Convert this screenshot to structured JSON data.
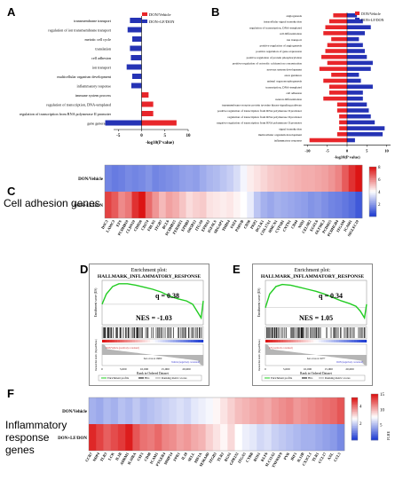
{
  "panels": {
    "a": "A",
    "b": "B",
    "c": "C",
    "d": "D",
    "e": "E",
    "f": "F"
  },
  "colors": {
    "red": "#e8262a",
    "blue": "#2533b5"
  },
  "chart_data": [
    {
      "id": "A",
      "type": "bar",
      "orientation": "horizontal",
      "legend": [
        "DON/Vehicle",
        "DON+LF/DON"
      ],
      "xlabel": "-log10(P value)",
      "xlim": [
        -6,
        10
      ],
      "xticks": [
        -5,
        0,
        5,
        10
      ],
      "categories": [
        "transmembrane transport",
        "regulation of ion transmembrane transport",
        "meiotic cell cycle",
        "translation",
        "cell adhesion",
        "ion transport",
        "multicellular organism development",
        "inflammatory response",
        "immune system process",
        "regulation of transcription, DNA-templated",
        "regulation of transcription from RNA polymerase II promoter",
        "gene generation"
      ],
      "values": [
        -2.5,
        -3.0,
        -2.0,
        -2.5,
        -2.3,
        -3.2,
        -2.0,
        -2.2,
        1.5,
        2.5,
        2.5,
        7.5
      ],
      "negative_extra": [
        0,
        0,
        0,
        0,
        0,
        0,
        0,
        0,
        0,
        0,
        0,
        -7.8
      ]
    },
    {
      "id": "B",
      "type": "bar",
      "orientation": "horizontal",
      "legend": [
        "DON/Vehicle",
        "DON+LF/DON"
      ],
      "xlabel": "-log10(P value)",
      "xlim": [
        -11,
        11
      ],
      "xticks": [
        -10,
        -5,
        0,
        5,
        10
      ],
      "categories": [
        "angiogenesis",
        "intracellular signal transduction",
        "regulation of transcription, DNA-templated",
        "cell differentiation",
        "ion transport",
        "positive regulation of angiogenesis",
        "positive regulation of gene expression",
        "positive regulation of protein phosphorylation",
        "positive regulation of cytosolic calcium ion concentration",
        "nervous system development",
        "axon guidance",
        "animal organ morphogenesis",
        "transcription, DNA-templated",
        "cell adhesion",
        "neuron differentiation",
        "transmembrane receptor protein tyrosine kinase signaling pathway",
        "positive regulation of transcription from RNA polymerase II promoter",
        "regulation of transcription from RNA polymerase II promoter",
        "negative regulation of transcription from RNA polymerase II promoter",
        "signal transduction",
        "multicellular organism development",
        "inflammatory response"
      ],
      "values_red": [
        -3.5,
        -4.5,
        -5.5,
        -6.0,
        -4.0,
        -5.0,
        -5.5,
        -6.5,
        -5.0,
        -7.0,
        -4.0,
        -6.0,
        -4.5,
        -4.5,
        -6.0,
        -2.5,
        -2.5,
        -2.0,
        -2.0,
        -2.0,
        -2.5,
        -9.5
      ],
      "values_blue": [
        2.5,
        4.0,
        6.0,
        4.5,
        3.0,
        4.0,
        4.5,
        5.0,
        6.5,
        6.0,
        3.0,
        3.5,
        6.5,
        4.0,
        4.0,
        5.0,
        5.5,
        6.0,
        7.0,
        9.5,
        9.0,
        2.0
      ]
    },
    {
      "id": "C",
      "type": "heatmap",
      "rows": [
        "DON/Vehicle",
        "DON+LF/DON"
      ],
      "row_title": "Cell adhesion genes",
      "columns": [
        "DSC3",
        "LAMC3",
        "EFS",
        "PCDHB10",
        "CLDN10",
        "CDH26",
        "CD274",
        "FBLN5",
        "ITGB7",
        "BCL6",
        "PCDHB15",
        "FERMT1",
        "EPHB3",
        "OR5B12",
        "ITGA9",
        "EPHA2",
        "IGFALS",
        "SRGAP1",
        "THBS4",
        "FAT4",
        "PARVB",
        "CD36",
        "PKP2",
        "DCLK1",
        "COL17A1",
        "HMCN1",
        "CYP1B1",
        "CNTN1",
        "CD44",
        "NID2",
        "CELSR2",
        "EGFL6",
        "OLFML3",
        "PCDH15",
        "PCDHGB4",
        "ITGAM",
        "ICAM1",
        "SIGLEC10"
      ],
      "colorbar": {
        "min": 0,
        "max": 8,
        "ticks": [
          2,
          4,
          6,
          8
        ]
      },
      "top_values": [
        1.5,
        1.3,
        1.4,
        1.6,
        1.5,
        1.6,
        1.8,
        1.5,
        1.6,
        1.7,
        1.8,
        2.0,
        2.1,
        2.0,
        2.3,
        2.5,
        2.6,
        2.8,
        3.0,
        3.3,
        3.8,
        4.3,
        4.5,
        4.7,
        4.9,
        5.0,
        5.1,
        5.2,
        5.3,
        5.4,
        5.4,
        5.5,
        5.6,
        5.8,
        6.1,
        6.8,
        7.5,
        8.0
      ],
      "bottom_values": [
        7.2,
        6.8,
        6.0,
        6.3,
        7.5,
        8.0,
        6.5,
        5.8,
        5.2,
        5.6,
        5.4,
        5.0,
        4.6,
        4.8,
        4.9,
        4.5,
        4.4,
        4.3,
        4.4,
        4.2,
        4.0,
        3.6,
        2.8,
        2.4,
        2.2,
        2.4,
        2.3,
        2.2,
        2.1,
        2.0,
        1.8,
        1.9,
        1.7,
        1.5,
        1.4,
        1.2,
        1.0,
        0.6
      ]
    },
    {
      "id": "D",
      "type": "line",
      "title_small": "Enrichment plot:",
      "title": "HALLMARK_INFLAMMATORY_RESPONSE",
      "q": "q = 0.38",
      "nes": "NES = -1.03",
      "ylabel": "Enrichment score (ES)",
      "xlabel": "Rank in Ordered Dataset",
      "lower_ylabel": "Ranked list metric (Signal2Noise)",
      "legend": [
        "Enrichment profile",
        "Hits",
        "Ranking metric scores"
      ],
      "left_tag": "DON/Vehicle (positively correlated)",
      "right_tag": "Vehicle (negatively correlated)",
      "zero_note": "Zero cross at 16000",
      "x": [
        0,
        1000,
        2500,
        4000,
        6000,
        8000,
        10000,
        12000,
        14000,
        16000,
        18000,
        20000,
        21500,
        22500,
        23500,
        24000
      ],
      "y": [
        0.0,
        0.15,
        0.26,
        0.3,
        0.3,
        0.28,
        0.25,
        0.22,
        0.18,
        0.12,
        0.08,
        0.05,
        0.0,
        -0.1,
        -0.2,
        0.05
      ],
      "xticks": [
        "0",
        "5,000",
        "10,000",
        "15,000",
        "20,000"
      ],
      "ylim": [
        -0.3,
        0.35
      ]
    },
    {
      "id": "E",
      "type": "line",
      "title_small": "Enrichment plot:",
      "title": "HALLMARK_INFLAMMATORY_RESPONSE",
      "q": "q = 0.34",
      "nes": "NES = 1.05",
      "ylabel": "Enrichment score (ES)",
      "xlabel": "Rank in Ordered Dataset",
      "lower_ylabel": "Ranked list metric (Signal2Noise)",
      "legend": [
        "Enrichment profile",
        "Hits",
        "Ranking metric scores"
      ],
      "left_tag": "LF (positively correlated)",
      "right_tag": "DON (negatively correlated)",
      "zero_note": "Zero cross at 10277",
      "x": [
        0,
        1000,
        2500,
        4000,
        6000,
        8000,
        10000,
        12000,
        14000,
        16000,
        18000,
        20000,
        21500,
        22500,
        23500,
        24000
      ],
      "y": [
        0.0,
        0.2,
        0.31,
        0.34,
        0.33,
        0.3,
        0.27,
        0.24,
        0.2,
        0.15,
        0.1,
        0.06,
        0.02,
        -0.05,
        -0.15,
        0.05
      ],
      "xticks": [
        "0",
        "5,000",
        "10,000",
        "15,000",
        "20,000"
      ],
      "ylim": [
        -0.25,
        0.4
      ]
    },
    {
      "id": "F",
      "type": "heatmap",
      "rows": [
        "DON/Vehicle",
        "DON+LF/DON"
      ],
      "row_title": "Inflammatory response genes",
      "columns": [
        "CCR7",
        "NDP4",
        "TLR3",
        "LCK",
        "IL1B",
        "ADRM1",
        "IL10RA",
        "CSF1",
        "CD48",
        "ICAM1",
        "PTGER4",
        "MMP14",
        "FPR1",
        "IL18",
        "SELL",
        "HIF1A",
        "SEMA4D",
        "ITGB3",
        "TLR2",
        "RGS1",
        "GPR132",
        "ITGA5",
        "CYBB",
        "ROS1",
        "KLF6",
        "SLC11A2",
        "TNFRSF9",
        "PVR",
        "IRF1",
        "IL12B",
        "CX3CL1",
        "TLR1",
        "CCL17",
        "AXL",
        "CCL5"
      ],
      "colorbar_a": {
        "min": 0,
        "max": 5,
        "ticks": [
          2,
          4
        ]
      },
      "colorbar_b": {
        "min": 0,
        "max": 15,
        "ticks": [
          5,
          10,
          15
        ]
      },
      "colorbar_b_label": "FLHE",
      "top_values": [
        1.5,
        1.4,
        1.6,
        1.5,
        1.7,
        1.6,
        1.8,
        1.6,
        1.7,
        1.8,
        1.9,
        2.0,
        2.1,
        2.0,
        2.2,
        2.3,
        2.4,
        2.6,
        2.8,
        3.0,
        3.2,
        3.3,
        3.4,
        3.5,
        3.4,
        3.6,
        3.7,
        3.8,
        3.6,
        3.7,
        3.8,
        3.9,
        4.0,
        4.1,
        4.3
      ],
      "bottom_values": [
        4.8,
        4.5,
        4.2,
        4.4,
        4.6,
        4.9,
        4.3,
        4.0,
        3.9,
        4.1,
        3.8,
        3.7,
        3.5,
        3.6,
        3.4,
        3.3,
        3.0,
        2.8,
        2.6,
        2.9,
        2.5,
        2.3,
        2.2,
        2.0,
        2.1,
        1.9,
        1.8,
        1.7,
        1.6,
        1.5,
        1.5,
        1.4,
        1.3,
        1.2,
        1.0
      ]
    }
  ]
}
